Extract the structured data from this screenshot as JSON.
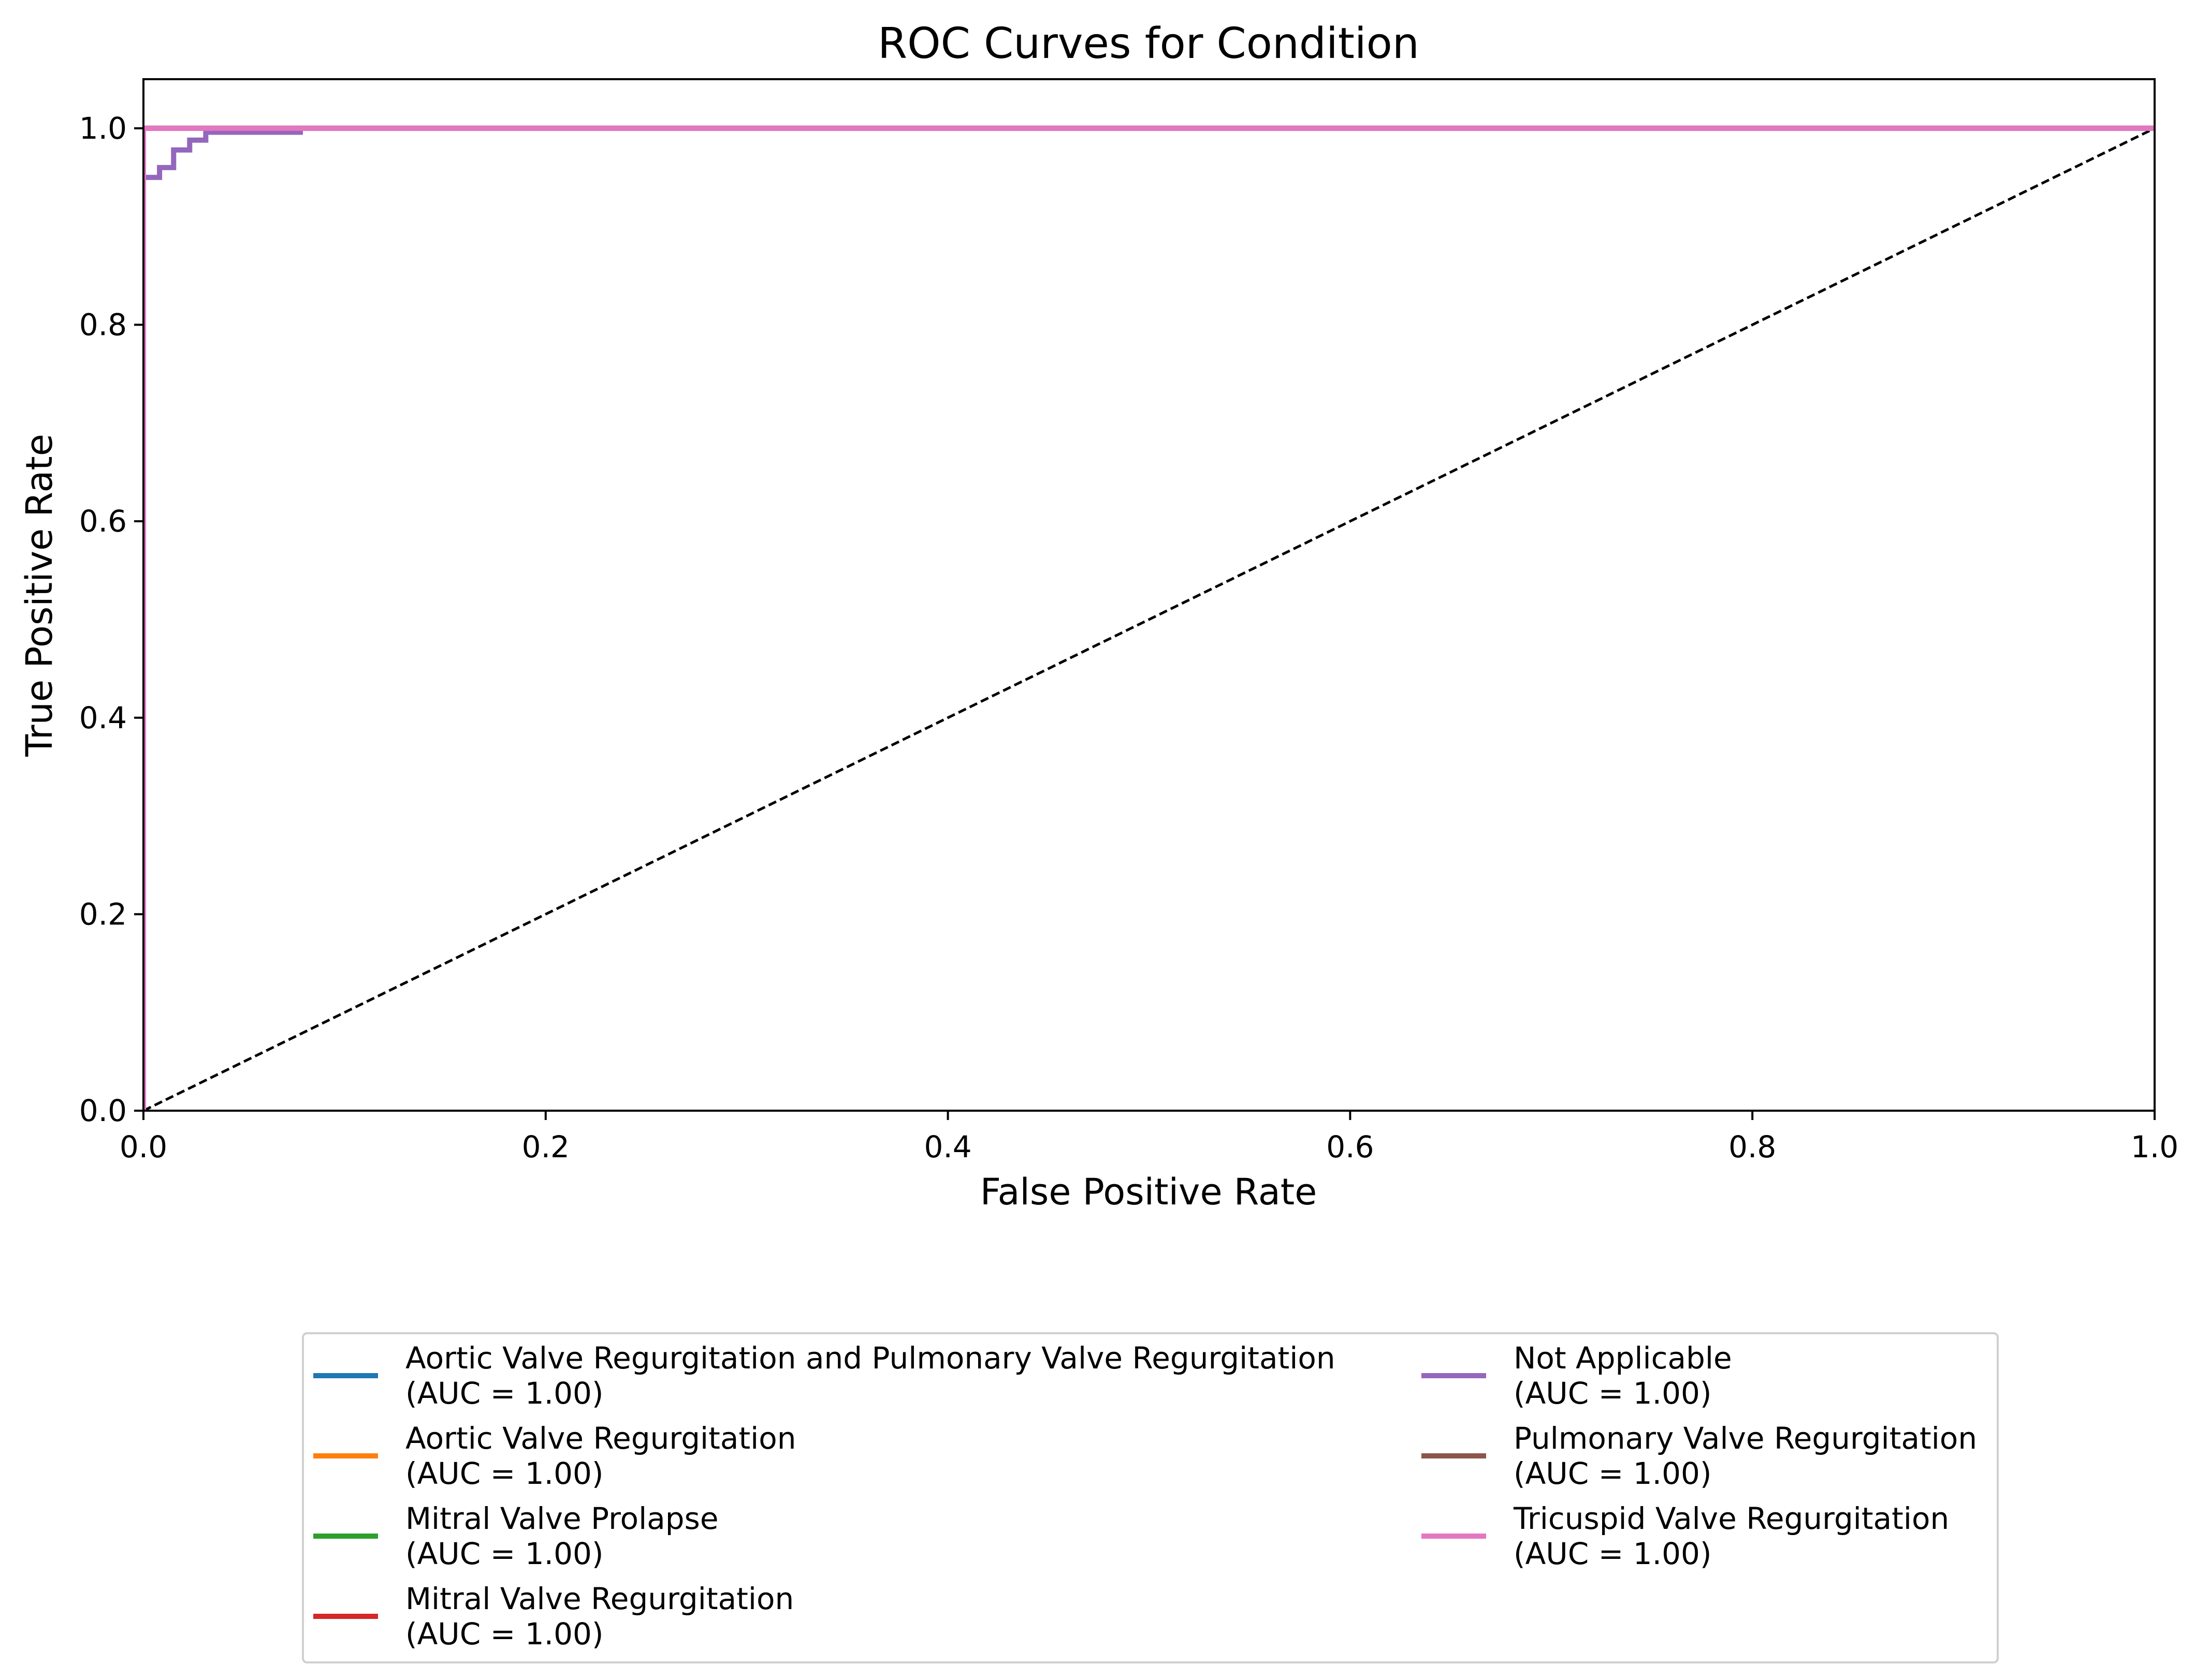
{
  "chart_data": {
    "type": "line",
    "title": "ROC Curves for Condition",
    "xlabel": "False Positive Rate",
    "ylabel": "True Positive Rate",
    "xlim": [
      0.0,
      1.0
    ],
    "ylim": [
      0.0,
      1.05
    ],
    "xticks": [
      0.0,
      0.2,
      0.4,
      0.6,
      0.8,
      1.0
    ],
    "yticks": [
      0.0,
      0.2,
      0.4,
      0.6,
      0.8,
      1.0
    ],
    "xtick_labels": [
      "0.0",
      "0.2",
      "0.4",
      "0.6",
      "0.8",
      "1.0"
    ],
    "ytick_labels": [
      "0.0",
      "0.2",
      "0.4",
      "0.6",
      "0.8",
      "1.0"
    ],
    "grid": false,
    "legend_placement": "bottom-center, two columns",
    "series": [
      {
        "name": "Aortic Valve Regurgitation and Pulmonary Valve Regurgitation",
        "auc_label": "(AUC = 1.00)",
        "color": "#1f77b4",
        "x": [
          0.0,
          0.0,
          1.0
        ],
        "y": [
          0.0,
          1.0,
          1.0
        ]
      },
      {
        "name": "Aortic Valve Regurgitation",
        "auc_label": "(AUC = 1.00)",
        "color": "#ff7f0e",
        "x": [
          0.0,
          0.0,
          1.0
        ],
        "y": [
          0.0,
          1.0,
          1.0
        ]
      },
      {
        "name": "Mitral Valve Prolapse",
        "auc_label": "(AUC = 1.00)",
        "color": "#2ca02c",
        "x": [
          0.0,
          0.0,
          1.0
        ],
        "y": [
          0.0,
          1.0,
          1.0
        ]
      },
      {
        "name": "Mitral Valve Regurgitation",
        "auc_label": "(AUC = 1.00)",
        "color": "#d62728",
        "x": [
          0.0,
          0.0,
          1.0
        ],
        "y": [
          0.0,
          1.0,
          1.0
        ]
      },
      {
        "name": "Not Applicable",
        "auc_label": "(AUC = 1.00)",
        "color": "#9467bd",
        "x": [
          0.0,
          0.0,
          0.008,
          0.008,
          0.015,
          0.015,
          0.023,
          0.023,
          0.031,
          0.031,
          0.078,
          0.078,
          1.0
        ],
        "y": [
          0.0,
          0.95,
          0.95,
          0.96,
          0.96,
          0.978,
          0.978,
          0.988,
          0.988,
          0.996,
          0.996,
          1.0,
          1.0
        ]
      },
      {
        "name": "Pulmonary Valve Regurgitation",
        "auc_label": "(AUC = 1.00)",
        "color": "#8c564b",
        "x": [
          0.0,
          0.0,
          1.0
        ],
        "y": [
          0.0,
          1.0,
          1.0
        ]
      },
      {
        "name": "Tricuspid Valve Regurgitation",
        "auc_label": "(AUC = 1.00)",
        "color": "#e377c2",
        "x": [
          0.0,
          0.0,
          1.0
        ],
        "y": [
          0.0,
          1.0,
          1.0
        ]
      }
    ],
    "reference_line": {
      "name": "chance diagonal",
      "style": "dashed",
      "color": "#000000",
      "x": [
        0.0,
        1.0
      ],
      "y": [
        0.0,
        1.0
      ]
    }
  }
}
